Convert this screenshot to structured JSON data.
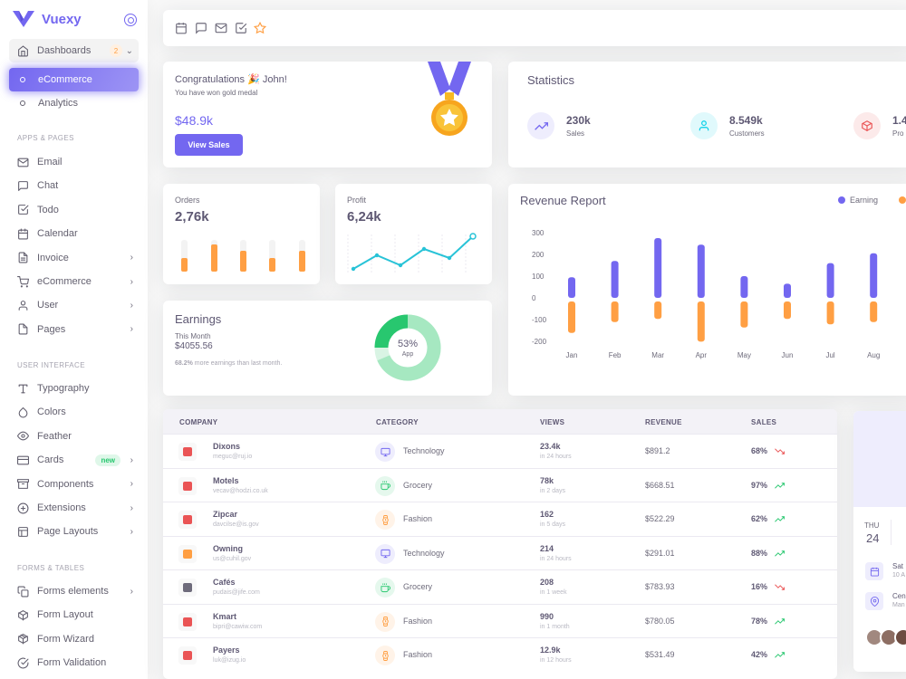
{
  "brand": {
    "name": "Vuexy"
  },
  "sidebar": {
    "dashboards": {
      "label": "Dashboards",
      "badge": "2"
    },
    "ecommerce": "eCommerce",
    "analytics": "Analytics",
    "section_apps": "APPS & PAGES",
    "apps": [
      {
        "label": "Email",
        "icon": "mail-icon"
      },
      {
        "label": "Chat",
        "icon": "message-square-icon"
      },
      {
        "label": "Todo",
        "icon": "check-square-icon"
      },
      {
        "label": "Calendar",
        "icon": "calendar-icon"
      },
      {
        "label": "Invoice",
        "icon": "file-text-icon"
      },
      {
        "label": "eCommerce",
        "icon": "shopping-cart-icon"
      },
      {
        "label": "User",
        "icon": "user-icon"
      },
      {
        "label": "Pages",
        "icon": "file-icon"
      }
    ],
    "section_ui": "USER INTERFACE",
    "ui": [
      {
        "label": "Typography",
        "icon": "type-icon"
      },
      {
        "label": "Colors",
        "icon": "droplet-icon"
      },
      {
        "label": "Feather",
        "icon": "eye-icon"
      },
      {
        "label": "Cards",
        "icon": "credit-card-icon",
        "badge": "new"
      },
      {
        "label": "Components",
        "icon": "archive-icon"
      },
      {
        "label": "Extensions",
        "icon": "plus-circle-icon"
      },
      {
        "label": "Page Layouts",
        "icon": "layout-icon"
      }
    ],
    "section_forms": "FORMS & TABLES",
    "forms": [
      {
        "label": "Forms elements",
        "icon": "copy-icon"
      },
      {
        "label": "Form Layout",
        "icon": "box-icon"
      },
      {
        "label": "Form Wizard",
        "icon": "package-icon"
      },
      {
        "label": "Form Validation",
        "icon": "check-circle-icon"
      }
    ]
  },
  "congrats": {
    "title": "Congratulations 🎉 John!",
    "subtitle": "You have won gold medal",
    "amount": "$48.9k",
    "button": "View Sales"
  },
  "statistics": {
    "title": "Statistics",
    "items": [
      {
        "value": "230k",
        "label": "Sales",
        "icon": "trending-up-icon"
      },
      {
        "value": "8.549k",
        "label": "Customers",
        "icon": "user-icon"
      },
      {
        "value": "1.4",
        "label": "Pro",
        "icon": "box-icon"
      }
    ]
  },
  "orders": {
    "title": "Orders",
    "value": "2,76k"
  },
  "profit": {
    "title": "Profit",
    "value": "6,24k"
  },
  "earnings": {
    "title": "Earnings",
    "period": "This Month",
    "amount": "$4055.56",
    "note_pct": "68.2%",
    "note_text": " more earnings than last month.",
    "donut_pct": "53%",
    "donut_label": "App"
  },
  "revenue": {
    "title": "Revenue Report",
    "legend_earning": "Earning"
  },
  "chart_data": {
    "type": "bar",
    "categories": [
      "Jan",
      "Feb",
      "Mar",
      "Apr",
      "May",
      "Jun",
      "Jul",
      "Aug"
    ],
    "series": [
      {
        "name": "Earning",
        "values": [
          95,
          170,
          275,
          245,
          100,
          65,
          160,
          205
        ],
        "color": "#7367f0"
      },
      {
        "name": "",
        "values": [
          -145,
          -95,
          -80,
          -185,
          -120,
          -80,
          -105,
          -95
        ],
        "color": "#ff9f43"
      }
    ],
    "yticks": [
      "300",
      "200",
      "100",
      "0",
      "-100",
      "-200"
    ],
    "ylim": [
      -200,
      300
    ]
  },
  "table": {
    "headers": [
      "COMPANY",
      "CATEGORY",
      "VIEWS",
      "REVENUE",
      "SALES"
    ],
    "rows": [
      {
        "name": "Dixons",
        "email": "meguc@ruj.io",
        "category": "Technology",
        "views": "23.4k",
        "period": "in 24 hours",
        "revenue": "$891.2",
        "sales": "68%",
        "trend": "down"
      },
      {
        "name": "Motels",
        "email": "vecav@hodzi.co.uk",
        "category": "Grocery",
        "views": "78k",
        "period": "in 2 days",
        "revenue": "$668.51",
        "sales": "97%",
        "trend": "up"
      },
      {
        "name": "Zipcar",
        "email": "davcilse@is.gov",
        "category": "Fashion",
        "views": "162",
        "period": "in 5 days",
        "revenue": "$522.29",
        "sales": "62%",
        "trend": "up"
      },
      {
        "name": "Owning",
        "email": "us@cuhil.gov",
        "category": "Technology",
        "views": "214",
        "period": "in 24 hours",
        "revenue": "$291.01",
        "sales": "88%",
        "trend": "up"
      },
      {
        "name": "Cafés",
        "email": "pudais@jife.com",
        "category": "Grocery",
        "views": "208",
        "period": "in 1 week",
        "revenue": "$783.93",
        "sales": "16%",
        "trend": "down"
      },
      {
        "name": "Kmart",
        "email": "bipri@cawiw.com",
        "category": "Fashion",
        "views": "990",
        "period": "in 1 month",
        "revenue": "$780.05",
        "sales": "78%",
        "trend": "up"
      },
      {
        "name": "Payers",
        "email": "luk@izug.io",
        "category": "Fashion",
        "views": "12.9k",
        "period": "in 12 hours",
        "revenue": "$531.49",
        "sales": "42%",
        "trend": "up"
      }
    ]
  },
  "meetup": {
    "day": "THU",
    "date": "24",
    "items": [
      {
        "text": "Sat",
        "sub": "10 A"
      },
      {
        "text": "Cen",
        "sub": "Man"
      }
    ]
  }
}
